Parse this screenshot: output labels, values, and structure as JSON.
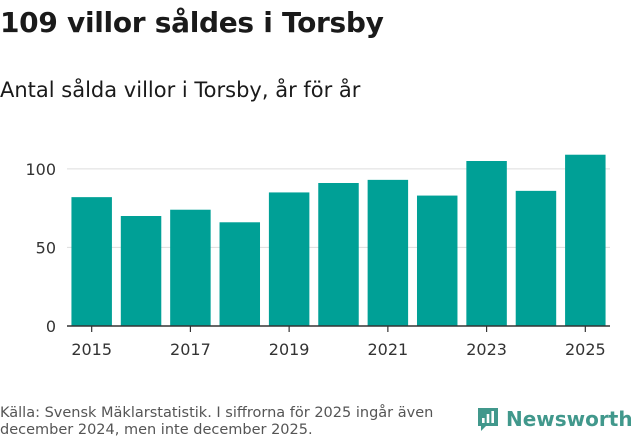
{
  "header": {
    "title": "109 villor såldes i Torsby",
    "subtitle": "Antal sålda villor i Torsby, år för år"
  },
  "footer": {
    "source": "Källa: Svensk Mäklarstatistik. I siffrorna för 2025 ingår även december 2024, men inte december 2025.",
    "brand": "Newsworthy"
  },
  "colors": {
    "bar": "#00a096",
    "grid": "#dddddd",
    "axis": "#333333",
    "brand": "#41988c"
  },
  "icons": {
    "brand_logo": "bar-chart-speech-bubble-icon"
  },
  "chart_data": {
    "type": "bar",
    "title": "109 villor såldes i Torsby",
    "subtitle": "Antal sålda villor i Torsby, år för år",
    "xlabel": "",
    "ylabel": "",
    "categories": [
      2015,
      2016,
      2017,
      2018,
      2019,
      2020,
      2021,
      2022,
      2023,
      2024,
      2025
    ],
    "values": [
      82,
      70,
      74,
      66,
      85,
      91,
      93,
      83,
      105,
      86,
      109
    ],
    "ylim": [
      0,
      112
    ],
    "yticks": [
      0,
      50,
      100
    ],
    "xticks": [
      2015,
      2017,
      2019,
      2021,
      2023,
      2025
    ],
    "grid": true,
    "legend": "none"
  }
}
